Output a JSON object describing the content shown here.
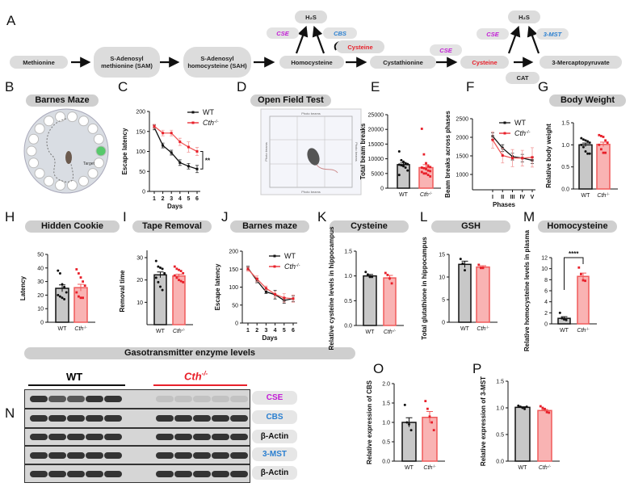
{
  "panel_letters": [
    "A",
    "B",
    "C",
    "D",
    "E",
    "F",
    "G",
    "H",
    "I",
    "J",
    "K",
    "L",
    "M",
    "N",
    "O",
    "P"
  ],
  "pathway": {
    "nodes": [
      "Methionine",
      "S-Adenosyl methionine (SAM)",
      "S-Adenosyl homocysteine (SAH)",
      "Homocysteine",
      "Cystathionine",
      "Cysteine",
      "3-Mercaptopyruvate",
      "CAT",
      "H₂S",
      "H₂S",
      "Cysteine"
    ],
    "enzymes": [
      "CSE",
      "CBS",
      "CSE",
      "CSE",
      "3-MST"
    ],
    "colors": {
      "CSE": "#c21bd6",
      "CBS": "#2a7fd0",
      "3-MST": "#2a7fd0",
      "Cysteine": "#e8202a"
    }
  },
  "titles": {
    "barnes_maze": "Barnes Maze",
    "open_field": "Open Field Test",
    "body_weight": "Body Weight",
    "hidden_cookie": "Hidden Cookie",
    "tape_removal": "Tape Removal",
    "barnes_maze_j": "Barnes maze",
    "cysteine": "Cysteine",
    "gsh": "GSH",
    "homocysteine": "Homocysteine",
    "gasotransmitter": "Gasotransmitter enzyme levels"
  },
  "images": {
    "maze_target": "Target",
    "openfield_labels": [
      "Photo beams",
      "Photo beams",
      "Photo beams",
      "Photo beams"
    ]
  },
  "blot": {
    "groups": [
      "WT",
      "Cth-/-"
    ],
    "rows": [
      "CSE",
      "CBS",
      "β-Actin",
      "3-MST",
      "β-Actin"
    ],
    "row_colors": [
      "#c21bd6",
      "#2a7fd0",
      "#111111",
      "#2a7fd0",
      "#111111"
    ]
  },
  "colors": {
    "wt_fill": "#c8c8c8",
    "wt_line": "#111111",
    "ko_fill": "#f9b3b3",
    "ko_line": "#f05a5a",
    "ko_point": "#e8202a"
  },
  "chart_data": [
    {
      "id": "C",
      "type": "line",
      "xlabel": "Days",
      "ylabel": "Escape latency",
      "x": [
        "1",
        "2",
        "3",
        "4",
        "5",
        "6"
      ],
      "ylim": [
        0,
        200
      ],
      "yticks": [
        "0",
        "50",
        "100",
        "150",
        "200"
      ],
      "legend": "top-right",
      "significance": "**",
      "series": [
        {
          "name": "WT",
          "values": [
            160,
            115,
            97,
            72,
            63,
            56
          ],
          "errors": [
            6,
            6,
            6,
            7,
            7,
            9
          ]
        },
        {
          "name": "Cth-/-",
          "values": [
            163,
            146,
            146,
            124,
            111,
            100
          ],
          "errors": [
            5,
            7,
            7,
            9,
            13,
            10
          ]
        }
      ]
    },
    {
      "id": "E",
      "type": "bar",
      "ylabel": "Total beam breaks",
      "categories": [
        "WT",
        "Cth-/-"
      ],
      "ylim": [
        0,
        25000
      ],
      "yticks": [
        "0",
        "5000",
        "10000",
        "15000",
        "20000",
        "25000"
      ],
      "values": [
        8000,
        7000
      ],
      "errors": [
        600,
        1000
      ],
      "points": [
        [
          12500,
          9500,
          9000,
          8500,
          8200,
          8000,
          7800,
          7500,
          7000,
          6000,
          4500
        ],
        [
          20200,
          11500,
          8500,
          7500,
          7200,
          7000,
          6800,
          6500,
          6000,
          5800,
          5500,
          5000,
          5000,
          4500,
          4000
        ]
      ]
    },
    {
      "id": "F",
      "type": "line",
      "xlabel": "Phases",
      "ylabel": "Beam breaks across phases",
      "x": [
        "I",
        "II",
        "III",
        "IV",
        "V"
      ],
      "ylim": [
        1000,
        2500
      ],
      "yticks": [
        "1000",
        "1500",
        "2000",
        "2500"
      ],
      "legend": "top-right",
      "series": [
        {
          "name": "WT",
          "values": [
            2030,
            1710,
            1480,
            1440,
            1380
          ],
          "errors": [
            90,
            90,
            90,
            100,
            90
          ]
        },
        {
          "name": "Cth-/-",
          "values": [
            1930,
            1510,
            1440,
            1440,
            1460
          ],
          "errors": [
            220,
            200,
            230,
            210,
            260
          ]
        }
      ]
    },
    {
      "id": "G",
      "type": "bar",
      "ylabel": "Relative body weight",
      "categories": [
        "WT",
        "Cth-/-"
      ],
      "ylim": [
        0,
        1.5
      ],
      "yticks": [
        "0.0",
        "0.5",
        "1.0",
        "1.5"
      ],
      "values": [
        1.0,
        1.01
      ],
      "errors": [
        0.04,
        0.05
      ],
      "points": [
        [
          1.15,
          1.12,
          1.1,
          1.08,
          1.05,
          1.0,
          0.95,
          0.85,
          0.8,
          0.8
        ],
        [
          1.22,
          1.2,
          1.18,
          1.1,
          1.05,
          1.0,
          0.9,
          0.82,
          0.82
        ]
      ]
    },
    {
      "id": "H",
      "type": "bar",
      "ylabel": "Latency",
      "categories": [
        "WT",
        "Cth-/-"
      ],
      "ylim": [
        0,
        50
      ],
      "yticks": [
        "0",
        "10",
        "20",
        "30",
        "40",
        "50"
      ],
      "values": [
        25,
        25.5
      ],
      "errors": [
        2.5,
        2.5
      ],
      "points": [
        [
          38,
          36,
          28,
          26,
          22,
          20,
          19,
          18,
          17
        ],
        [
          39,
          36,
          33,
          30,
          27,
          22,
          19,
          18,
          18
        ]
      ]
    },
    {
      "id": "I",
      "type": "bar",
      "ylabel": "Removal time",
      "categories": [
        "WT",
        "Cth-/-"
      ],
      "ylim": [
        0,
        30
      ],
      "yticks": [
        "10",
        "20",
        "30"
      ],
      "values": [
        22.3,
        21.8
      ],
      "errors": [
        1.3,
        0.8
      ],
      "points": [
        [
          28.5,
          26,
          25.5,
          25,
          23,
          21,
          19,
          17,
          15.5
        ],
        [
          26,
          25,
          24.5,
          24,
          23,
          22,
          21,
          20,
          19.5,
          19
        ]
      ]
    },
    {
      "id": "J",
      "type": "line",
      "xlabel": "Days",
      "ylabel": "Escape latency",
      "x": [
        "1",
        "2",
        "3",
        "4",
        "5",
        "6"
      ],
      "ylim": [
        0,
        200
      ],
      "yticks": [
        "0",
        "50",
        "100",
        "150",
        "200"
      ],
      "legend": "top-right",
      "series": [
        {
          "name": "WT",
          "values": [
            153,
            118,
            87,
            79,
            63,
            68
          ],
          "errors": [
            5,
            6,
            5,
            12,
            8,
            8
          ]
        },
        {
          "name": "Cth-/-",
          "values": [
            150,
            123,
            97,
            80,
            70,
            68
          ],
          "errors": [
            6,
            8,
            6,
            8,
            12,
            10
          ]
        }
      ]
    },
    {
      "id": "K",
      "type": "bar",
      "ylabel": "Relative cysteine levels in hippocampus",
      "categories": [
        "WT",
        "Cth-/-"
      ],
      "ylim": [
        0,
        1.5
      ],
      "yticks": [
        "0.0",
        "0.5",
        "1.0",
        "1.5"
      ],
      "values": [
        1.0,
        0.96
      ],
      "errors": [
        0.03,
        0.05
      ],
      "points": [
        [
          1.08,
          1.03,
          0.98,
          0.98
        ],
        [
          1.06,
          1.02,
          0.95,
          0.85
        ]
      ]
    },
    {
      "id": "L",
      "type": "bar",
      "ylabel": "Total glutathione in hippocampus",
      "categories": [
        "WT",
        "Cth-/-"
      ],
      "ylim": [
        0,
        15
      ],
      "yticks": [
        "0",
        "5",
        "10",
        "15"
      ],
      "values": [
        12.8,
        12.2
      ],
      "errors": [
        0.7,
        0.3
      ],
      "points": [
        [
          14,
          13,
          11.5
        ],
        [
          12.7,
          12,
          12
        ]
      ]
    },
    {
      "id": "M",
      "type": "bar",
      "ylabel": "Relative homocysteine levels in plasma",
      "categories": [
        "WT",
        "Cth-/-"
      ],
      "ylim": [
        0,
        12
      ],
      "yticks": [
        "0",
        "2",
        "4",
        "6",
        "8",
        "10",
        "12"
      ],
      "significance": "****",
      "values": [
        1.0,
        8.6
      ],
      "errors": [
        0.3,
        0.6
      ],
      "points": [
        [
          2,
          1,
          0.8,
          0.7
        ],
        [
          10.2,
          9,
          7.9,
          7.8
        ]
      ]
    },
    {
      "id": "O",
      "type": "bar",
      "ylabel": "Relative expression of CBS",
      "categories": [
        "WT",
        "Cth-/-"
      ],
      "ylim": [
        0,
        2
      ],
      "yticks": [
        "0.0",
        "0.5",
        "1.0",
        "1.5",
        "2.0"
      ],
      "values": [
        1.0,
        1.13
      ],
      "errors": [
        0.12,
        0.15
      ],
      "points": [
        [
          1.45,
          1.0,
          0.95,
          0.8
        ],
        [
          1.55,
          1.35,
          1.15,
          1.0,
          0.8
        ]
      ]
    },
    {
      "id": "P",
      "type": "bar",
      "ylabel": "Relative expression of 3-MST",
      "categories": [
        "WT",
        "Cth-/-"
      ],
      "ylim": [
        0,
        1.5
      ],
      "yticks": [
        "0.0",
        "0.5",
        "1.0",
        "1.5"
      ],
      "values": [
        1.01,
        0.95
      ],
      "errors": [
        0.01,
        0.02
      ],
      "points": [
        [
          1.04,
          1.02,
          1.0,
          0.98,
          1.02
        ],
        [
          1.03,
          1.0,
          0.98,
          0.92,
          0.91
        ]
      ]
    }
  ]
}
